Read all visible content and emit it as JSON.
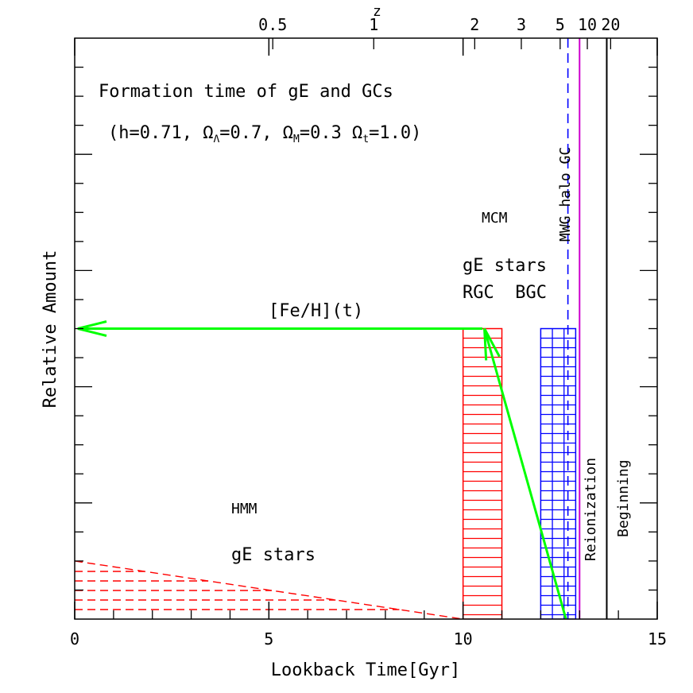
{
  "chart_data": {
    "type": "bar",
    "xlabel": "Lookback Time[Gyr]",
    "ylabel": "Relative Amount",
    "top_axis_label": "z",
    "xlim": [
      0,
      15
    ],
    "ylim": [
      0,
      1
    ],
    "x_ticks": [
      "0",
      "5",
      "10",
      "15"
    ],
    "x_tick_values": [
      0,
      5,
      10,
      15
    ],
    "z_ticks": [
      {
        "label": "0.5",
        "t": 5.1
      },
      {
        "label": "1",
        "t": 7.7
      },
      {
        "label": "2",
        "t": 10.3
      },
      {
        "label": "3",
        "t": 11.5
      },
      {
        "label": "5",
        "t": 12.5
      },
      {
        "label": "10",
        "t": 13.2
      },
      {
        "label": "20",
        "t": 13.8
      }
    ],
    "title_line1": "Formation time of gE and GCs",
    "title_line2": {
      "prefix": "(h=0.71, Ω",
      "sub1": "Λ",
      "mid1": "=0.7, Ω",
      "sub2": "M",
      "mid2": "=0.3 Ω",
      "sub3": "t",
      "suffix": "=1.0)"
    },
    "bars": [
      {
        "label": "RGC",
        "x0": 10.0,
        "x1": 11.0,
        "height": 0.5,
        "color": "#ff0000"
      },
      {
        "label": "BGC",
        "x0": 12.0,
        "x1": 12.9,
        "height": 0.5,
        "color": "#0000ff"
      }
    ],
    "hmm_wedge": {
      "x_end": 10.0,
      "height": 0.1,
      "color": "#ff0000"
    },
    "vertical_lines": [
      {
        "label": "MWG halo GC",
        "x": 12.7,
        "style": "dashed",
        "color": "#0000ff"
      },
      {
        "label": "",
        "x": 13.0,
        "style": "solid",
        "color": "#cc00cc"
      },
      {
        "label": "Reionization",
        "x": 13.0,
        "style": "none",
        "color": "#000000"
      },
      {
        "label": "Beginning",
        "x": 13.7,
        "style": "solid",
        "color": "#000000"
      }
    ],
    "feh_arrow": {
      "label": "[Fe/H](t)",
      "y": 0.5,
      "from_x": 10.5,
      "to_x": 0.0,
      "color": "#00ff00"
    },
    "diag_arrow": {
      "from": [
        12.65,
        0.0
      ],
      "to": [
        10.55,
        0.5
      ],
      "color": "#00ff00"
    },
    "annotations": {
      "mcm": "MCM",
      "mcm_color": "#0000ff",
      "gE_stars_top": "gE stars",
      "rgc_bgc": "RGC  BGC",
      "hmm": "HMM",
      "hmm_color": "#0000ff",
      "gE_stars_bottom": "gE stars"
    }
  }
}
